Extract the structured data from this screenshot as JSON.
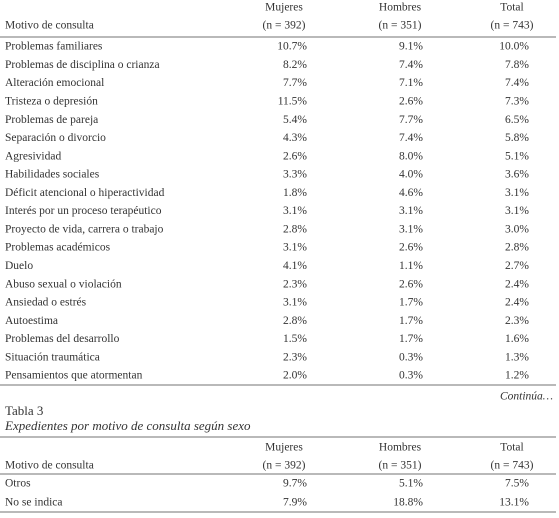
{
  "table": {
    "header": {
      "label": "Motivo de consulta",
      "columns": [
        {
          "name": "Mujeres",
          "n": "(n = 392)"
        },
        {
          "name": "Hombres",
          "n": "(n = 351)"
        },
        {
          "name": "Total",
          "n": "(n = 743)"
        }
      ]
    },
    "rows": [
      [
        "Problemas familiares",
        "10.7%",
        "9.1%",
        "10.0%"
      ],
      [
        "Problemas de disciplina o crianza",
        "8.2%",
        "7.4%",
        "7.8%"
      ],
      [
        "Alteración emocional",
        "7.7%",
        "7.1%",
        "7.4%"
      ],
      [
        "Tristeza o depresión",
        "11.5%",
        "2.6%",
        "7.3%"
      ],
      [
        "Problemas de pareja",
        "5.4%",
        "7.7%",
        "6.5%"
      ],
      [
        "Separación o divorcio",
        "4.3%",
        "7.4%",
        "5.8%"
      ],
      [
        "Agresividad",
        "2.6%",
        "8.0%",
        "5.1%"
      ],
      [
        "Habilidades sociales",
        "3.3%",
        "4.0%",
        "3.6%"
      ],
      [
        "Déficit atencional o hiperactividad",
        "1.8%",
        "4.6%",
        "3.1%"
      ],
      [
        "Interés por un proceso terapéutico",
        "3.1%",
        "3.1%",
        "3.1%"
      ],
      [
        "Proyecto de vida, carrera o trabajo",
        "2.8%",
        "3.1%",
        "3.0%"
      ],
      [
        "Problemas académicos",
        "3.1%",
        "2.6%",
        "2.8%"
      ],
      [
        "Duelo",
        "4.1%",
        "1.1%",
        "2.7%"
      ],
      [
        "Abuso sexual o violación",
        "2.3%",
        "2.6%",
        "2.4%"
      ],
      [
        "Ansiedad o estrés",
        "3.1%",
        "1.7%",
        "2.4%"
      ],
      [
        "Autoestima",
        "2.8%",
        "1.7%",
        "2.3%"
      ],
      [
        "Problemas del desarrollo",
        "1.5%",
        "1.7%",
        "1.6%"
      ],
      [
        "Situación traumática",
        "2.3%",
        "0.3%",
        "1.3%"
      ],
      [
        "Pensamientos que atormentan",
        "2.0%",
        "0.3%",
        "1.2%"
      ]
    ]
  },
  "continued": "Continúa…",
  "table2": {
    "number": "Tabla 3",
    "caption": "Expedientes por motivo de consulta según sexo",
    "header": {
      "label": "Motivo de consulta",
      "columns": [
        {
          "name": "Mujeres",
          "n": "(n = 392)"
        },
        {
          "name": "Hombres",
          "n": "(n = 351)"
        },
        {
          "name": "Total",
          "n": "(n = 743)"
        }
      ]
    },
    "rows": [
      [
        "Otros",
        "9.7%",
        "5.1%",
        "7.5%"
      ],
      [
        "No se indica",
        "7.9%",
        "18.8%",
        "13.1%"
      ]
    ]
  }
}
